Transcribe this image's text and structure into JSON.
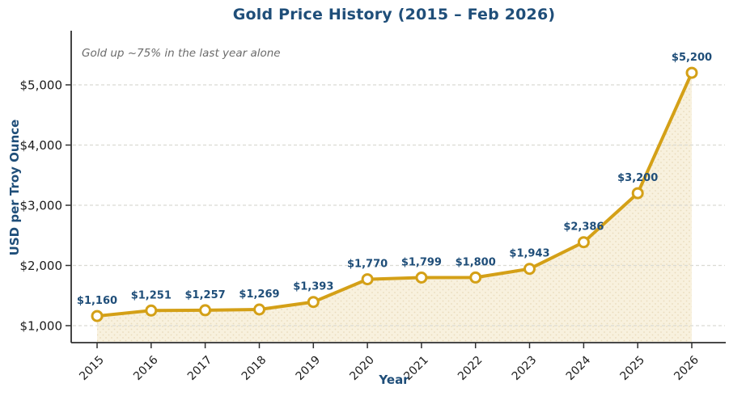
{
  "chart_data": {
    "type": "line",
    "title": "Gold Price History (2015 – Feb 2026)",
    "annotation": "Gold up ~75% in the last year alone",
    "xlabel": "Year",
    "ylabel": "USD per Troy Ounce",
    "categories": [
      "2015",
      "2016",
      "2017",
      "2018",
      "2019",
      "2020",
      "2021",
      "2022",
      "2023",
      "2024",
      "2025",
      "2026"
    ],
    "values": [
      1160,
      1251,
      1257,
      1269,
      1393,
      1770,
      1799,
      1800,
      1943,
      2386,
      3200,
      5200
    ],
    "point_labels": [
      "$1,160",
      "$1,251",
      "$1,257",
      "$1,269",
      "$1,393",
      "$1,770",
      "$1,799",
      "$1,800",
      "$1,943",
      "$2,386",
      "$3,200",
      "$5,200"
    ],
    "ytick_values": [
      1000,
      2000,
      3000,
      4000,
      5000
    ],
    "ytick_labels": [
      "$1,000",
      "$2,000",
      "$3,000",
      "$4,000",
      "$5,000"
    ],
    "ylim": [
      720,
      5870
    ],
    "grid": "horizontal-dashed",
    "legend": "none",
    "area_fill_style": "cream with dot texture, filled to baseline",
    "marker_style": "white circles with gold ring",
    "colors": {
      "line": "#d4a017",
      "marker_fill": "#ffffff",
      "area_fill": "#f8f1de",
      "area_dots": "#e9dcbc",
      "title": "#1f4e79",
      "data_label": "#1f4e79",
      "axis_label": "#1f4e79",
      "tick_text": "#1c1c1c",
      "grid": "#dbdbd3",
      "spine": "#2f2f2f",
      "annotation": "#6b6b6b"
    }
  }
}
